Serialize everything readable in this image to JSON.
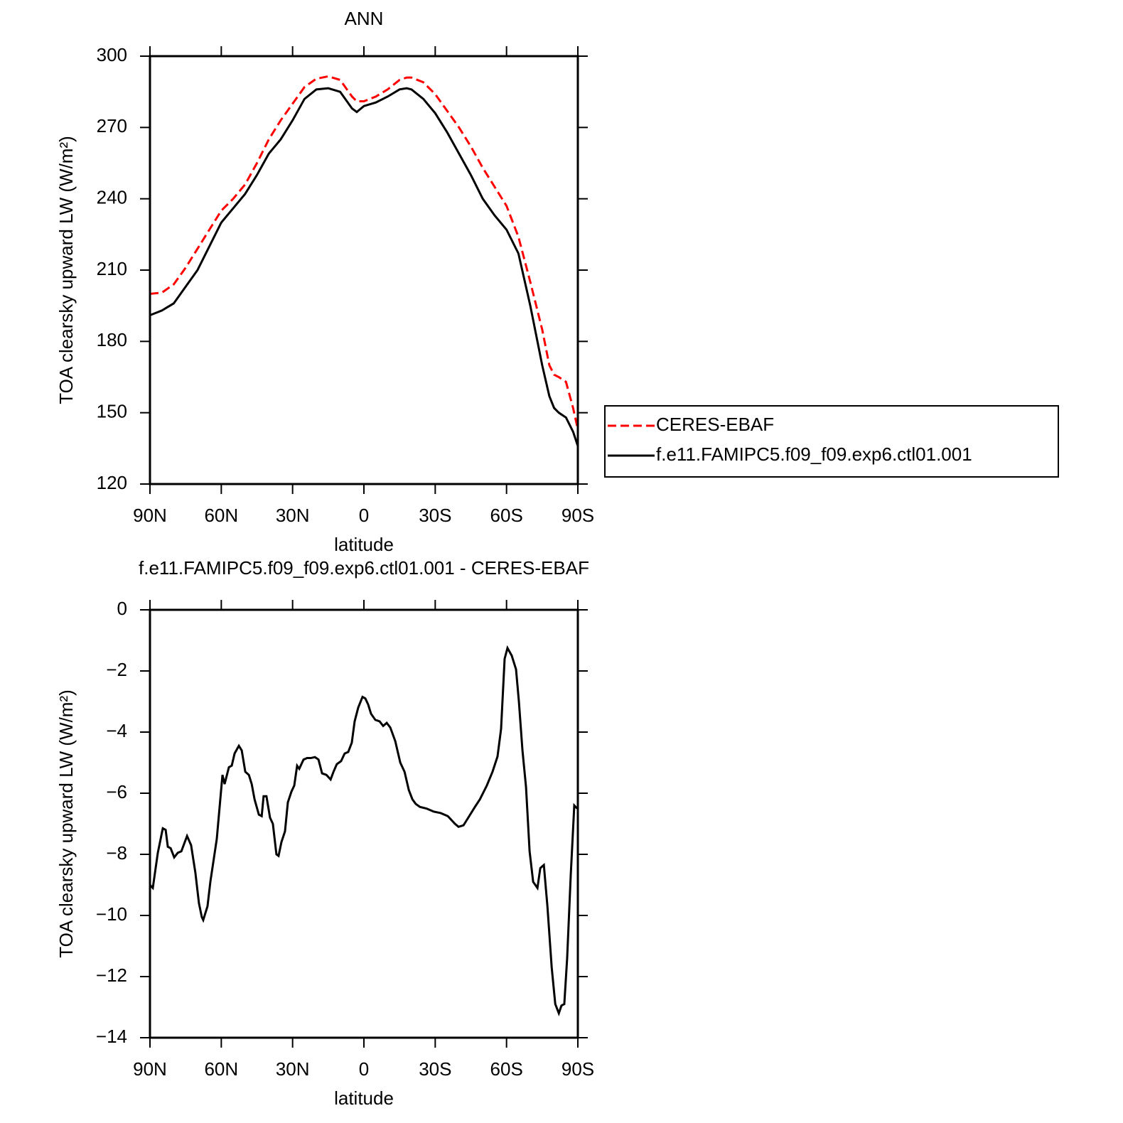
{
  "chart_data": [
    {
      "type": "line",
      "title": "ANN",
      "x_label": "latitude",
      "y_label": "TOA clearsky upward LW (W/m²)",
      "xlim": [
        90,
        -90
      ],
      "xticks": [
        {
          "value": 90,
          "label": "90N"
        },
        {
          "value": 60,
          "label": "60N"
        },
        {
          "value": 30,
          "label": "30N"
        },
        0,
        {
          "value": -30,
          "label": "30S"
        },
        {
          "value": -60,
          "label": "60S"
        },
        {
          "value": -90,
          "label": "90S"
        }
      ],
      "ylim": [
        120,
        300
      ],
      "yticks": [
        120,
        150,
        180,
        210,
        240,
        270,
        300
      ],
      "legend": "right",
      "x": [
        90,
        85,
        80,
        75,
        70,
        65,
        60,
        55,
        50,
        45,
        40,
        35,
        30,
        25,
        20,
        15,
        10,
        5,
        3,
        0,
        -5,
        -10,
        -15,
        -18,
        -20,
        -25,
        -30,
        -35,
        -40,
        -45,
        -50,
        -55,
        -60,
        -65,
        -70,
        -73,
        -75,
        -78,
        -80,
        -82,
        -85,
        -88,
        -90
      ],
      "series": [
        {
          "name": "CERES-EBAF",
          "color": "#ff0000",
          "style": "dashed",
          "values": [
            200,
            200.5,
            204,
            211,
            219,
            227,
            235,
            240,
            246,
            255,
            265,
            273,
            280,
            287,
            290.5,
            291.5,
            290,
            283,
            281,
            281,
            283,
            286,
            290,
            291,
            291,
            289,
            284,
            277,
            270,
            262,
            253,
            245,
            237,
            224,
            205,
            193,
            185,
            170,
            166,
            165,
            163,
            152,
            143
          ]
        },
        {
          "name": "f.e11.FAMIPC5.f09_f09.exp6.ctl01.001",
          "color": "#000000",
          "style": "solid",
          "values": [
            191,
            193,
            196,
            203,
            210,
            220,
            230,
            236,
            242,
            250,
            259,
            265,
            273,
            282,
            286,
            286.5,
            285,
            278,
            276.5,
            279,
            280.5,
            283,
            286,
            286.5,
            286,
            282,
            276,
            268,
            259,
            250,
            240,
            233,
            227,
            217,
            195,
            180,
            170,
            157,
            152,
            150,
            148,
            142,
            136
          ]
        }
      ]
    },
    {
      "type": "line",
      "title": "f.e11.FAMIPC5.f09_f09.exp6.ctl01.001 - CERES-EBAF",
      "x_label": "latitude",
      "y_label": "TOA clearsky upward LW (W/m²)",
      "xlim": [
        90,
        -90
      ],
      "xticks": [
        {
          "value": 90,
          "label": "90N"
        },
        {
          "value": 60,
          "label": "60N"
        },
        {
          "value": 30,
          "label": "30N"
        },
        0,
        {
          "value": -30,
          "label": "30S"
        },
        {
          "value": -60,
          "label": "60S"
        },
        {
          "value": -90,
          "label": "90S"
        }
      ],
      "ylim": [
        -14,
        0
      ],
      "yticks": [
        {
          "value": -14,
          "label": "−14"
        },
        {
          "value": -12,
          "label": "−12"
        },
        {
          "value": -10,
          "label": "−10"
        },
        {
          "value": -8,
          "label": "−8"
        },
        {
          "value": -6,
          "label": "−6"
        },
        {
          "value": -4,
          "label": "−4"
        },
        {
          "value": -2,
          "label": "−2"
        },
        0
      ],
      "color": "#000000",
      "x": [
        90,
        88.8,
        86.7,
        84.6,
        83.4,
        82.5,
        81.3,
        79.8,
        78.3,
        76.8,
        74.4,
        72.7,
        70.9,
        69.4,
        68.2,
        67.6,
        65.8,
        64.6,
        61.9,
        59.5,
        58.6,
        56.8,
        55.6,
        54.4,
        52.6,
        51.4,
        49.9,
        48.4,
        47.2,
        46.0,
        44.2,
        43.0,
        42.2,
        41.0,
        39.5,
        38.3,
        36.8,
        35.9,
        34.7,
        33.2,
        32.0,
        30.5,
        29.3,
        28.1,
        27.2,
        25.4,
        23.9,
        22.4,
        20.6,
        19.1,
        17.6,
        15.8,
        14.0,
        12.8,
        11.4,
        9.6,
        8.1,
        6.6,
        5.1,
        3.9,
        2.4,
        0.6,
        -0.6,
        -1.8,
        -3.0,
        -4.8,
        -6.6,
        -8.1,
        -9.6,
        -11.1,
        -13.2,
        -15.3,
        -17.1,
        -18.9,
        -20.4,
        -21.8,
        -23.6,
        -26.3,
        -29.3,
        -32.3,
        -35.3,
        -38.3,
        -39.8,
        -41.9,
        -44.3,
        -46.7,
        -48.8,
        -51.7,
        -54.1,
        -56.2,
        -57.7,
        -59.2,
        -60.4,
        -62.2,
        -64.0,
        -65.2,
        -66.7,
        -68.2,
        -69.7,
        -71.2,
        -73.0,
        -74.2,
        -75.7,
        -77.2,
        -79.0,
        -80.5,
        -82.0,
        -83.1,
        -84.3,
        -85.5,
        -87.0,
        -88.5,
        -89.7
      ],
      "values": [
        -9.0,
        -9.1,
        -7.95,
        -7.15,
        -7.2,
        -7.75,
        -7.8,
        -8.1,
        -7.95,
        -7.9,
        -7.4,
        -7.7,
        -8.6,
        -9.6,
        -10.05,
        -10.15,
        -9.7,
        -8.9,
        -7.5,
        -5.4,
        -5.7,
        -5.15,
        -5.1,
        -4.7,
        -4.45,
        -4.6,
        -5.3,
        -5.4,
        -5.7,
        -6.2,
        -6.7,
        -6.75,
        -6.1,
        -6.1,
        -6.8,
        -7.0,
        -8.0,
        -8.05,
        -7.6,
        -7.25,
        -6.3,
        -5.95,
        -5.75,
        -5.1,
        -5.2,
        -4.9,
        -4.85,
        -4.85,
        -4.82,
        -4.9,
        -5.35,
        -5.4,
        -5.55,
        -5.3,
        -5.05,
        -4.95,
        -4.7,
        -4.65,
        -4.35,
        -3.65,
        -3.2,
        -2.85,
        -2.9,
        -3.1,
        -3.4,
        -3.6,
        -3.65,
        -3.8,
        -3.7,
        -3.85,
        -4.3,
        -5.0,
        -5.3,
        -5.9,
        -6.2,
        -6.35,
        -6.45,
        -6.5,
        -6.6,
        -6.65,
        -6.75,
        -7.0,
        -7.1,
        -7.05,
        -6.75,
        -6.45,
        -6.2,
        -5.75,
        -5.3,
        -4.8,
        -3.9,
        -1.6,
        -1.25,
        -1.5,
        -1.95,
        -3.0,
        -4.6,
        -5.8,
        -7.9,
        -8.9,
        -9.1,
        -8.45,
        -8.35,
        -9.7,
        -11.7,
        -12.9,
        -13.2,
        -12.95,
        -12.9,
        -11.4,
        -8.7,
        -6.4,
        -6.5
      ]
    }
  ]
}
